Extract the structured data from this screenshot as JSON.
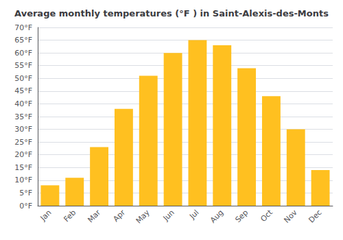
{
  "chart_data": {
    "type": "bar",
    "title": "Average monthly temperatures (°F ) in Saint-Alexis-des-Monts",
    "categories": [
      "Jan",
      "Feb",
      "Mar",
      "Apr",
      "May",
      "Jun",
      "Jul",
      "Aug",
      "Sep",
      "Oct",
      "Nov",
      "Dec"
    ],
    "values": [
      8,
      11,
      23,
      38,
      51,
      60,
      65,
      63,
      54,
      43,
      30,
      14
    ],
    "color": "#FFC020",
    "ylim": [
      0,
      70
    ],
    "yticks": [
      {
        "value": 0,
        "label": "0°F"
      },
      {
        "value": 5,
        "label": "5°F"
      },
      {
        "value": 10,
        "label": "10°F"
      },
      {
        "value": 15,
        "label": "15°F"
      },
      {
        "value": 20,
        "label": "20°F"
      },
      {
        "value": 25,
        "label": "25°F"
      },
      {
        "value": 30,
        "label": "30°F"
      },
      {
        "value": 35,
        "label": "35°F"
      },
      {
        "value": 40,
        "label": "40°F"
      },
      {
        "value": 45,
        "label": "45°F"
      },
      {
        "value": 50,
        "label": "50°F"
      },
      {
        "value": 55,
        "label": "55°F"
      },
      {
        "value": 60,
        "label": "60°F"
      },
      {
        "value": 65,
        "label": "65°F"
      },
      {
        "value": 70,
        "label": "70°F"
      }
    ],
    "grid": true
  }
}
